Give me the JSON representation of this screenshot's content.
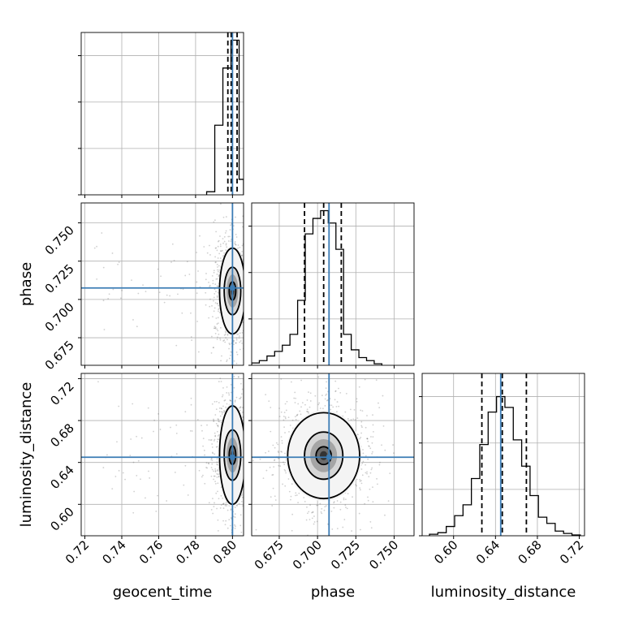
{
  "chart_data": {
    "type": "corner",
    "parameters": [
      "geocent_time",
      "phase",
      "luminosity_distance"
    ],
    "truths": {
      "geocent_time": 0.8,
      "phase": 0.7075,
      "luminosity_distance": 0.645
    },
    "truth_color": "#3b7cb5",
    "marginals": [
      {
        "parameter": "geocent_time",
        "range": [
          0.718,
          0.806
        ],
        "ticks": [
          "0.72",
          "0.74",
          "0.76",
          "0.78",
          "0.80"
        ],
        "tick_values": [
          0.72,
          0.74,
          0.76,
          0.78,
          0.8
        ],
        "quantiles": [
          0.7975,
          0.7993,
          0.8025
        ],
        "bin_edges": [
          0.786,
          0.7904,
          0.7948,
          0.7992,
          0.8036,
          0.806
        ],
        "counts": [
          0.02,
          0.45,
          0.82,
          1.0,
          0.1
        ],
        "ylim": [
          0,
          1.05
        ]
      },
      {
        "parameter": "phase",
        "range": [
          0.657,
          0.763
        ],
        "ticks": [
          "0.675",
          "0.700",
          "0.725",
          "0.750"
        ],
        "tick_values": [
          0.675,
          0.7,
          0.725,
          0.75
        ],
        "quantiles": [
          0.6915,
          0.704,
          0.7155
        ],
        "bin_edges": [
          0.657,
          0.662,
          0.667,
          0.672,
          0.677,
          0.682,
          0.687,
          0.692,
          0.697,
          0.702,
          0.707,
          0.712,
          0.717,
          0.722,
          0.727,
          0.732,
          0.737,
          0.742
        ],
        "counts": [
          0.015,
          0.03,
          0.06,
          0.09,
          0.13,
          0.2,
          0.42,
          0.85,
          0.95,
          1.0,
          0.92,
          0.75,
          0.2,
          0.1,
          0.05,
          0.03,
          0.01
        ],
        "ylim": [
          0,
          1.05
        ]
      },
      {
        "parameter": "luminosity_distance",
        "range": [
          0.57,
          0.725
        ],
        "ticks": [
          "0.60",
          "0.64",
          "0.68",
          "0.72"
        ],
        "tick_values": [
          0.6,
          0.64,
          0.68,
          0.72
        ],
        "quantiles": [
          0.627,
          0.6465,
          0.6695
        ],
        "bin_edges": [
          0.577,
          0.585,
          0.593,
          0.601,
          0.609,
          0.617,
          0.625,
          0.633,
          0.641,
          0.649,
          0.657,
          0.665,
          0.673,
          0.681,
          0.689,
          0.697,
          0.705,
          0.713,
          0.721
        ],
        "counts": [
          0.01,
          0.02,
          0.06,
          0.13,
          0.2,
          0.37,
          0.59,
          0.8,
          0.9,
          0.83,
          0.62,
          0.45,
          0.26,
          0.12,
          0.08,
          0.03,
          0.015,
          0.005
        ],
        "ylim": [
          0,
          1.05
        ]
      }
    ],
    "joint_panels": [
      {
        "x": "geocent_time",
        "y": "phase",
        "center": [
          0.8,
          0.7055
        ],
        "contour_widths": [
          0.0018,
          0.0045,
          0.007
        ],
        "contour_heights": [
          0.006,
          0.0155,
          0.028
        ],
        "scatter_spread": [
          0.004,
          0.014
        ]
      },
      {
        "x": "geocent_time",
        "y": "luminosity_distance",
        "center": [
          0.8,
          0.647
        ],
        "contour_widths": [
          0.0018,
          0.0045,
          0.007
        ],
        "contour_heights": [
          0.009,
          0.024,
          0.047
        ],
        "scatter_spread": [
          0.004,
          0.022
        ]
      },
      {
        "x": "phase",
        "y": "luminosity_distance",
        "center": [
          0.704,
          0.6465
        ],
        "contour_widths": [
          0.005,
          0.0125,
          0.0235
        ],
        "contour_heights": [
          0.0085,
          0.0225,
          0.041
        ],
        "scatter_spread": [
          0.012,
          0.021
        ]
      }
    ],
    "grid": true
  }
}
